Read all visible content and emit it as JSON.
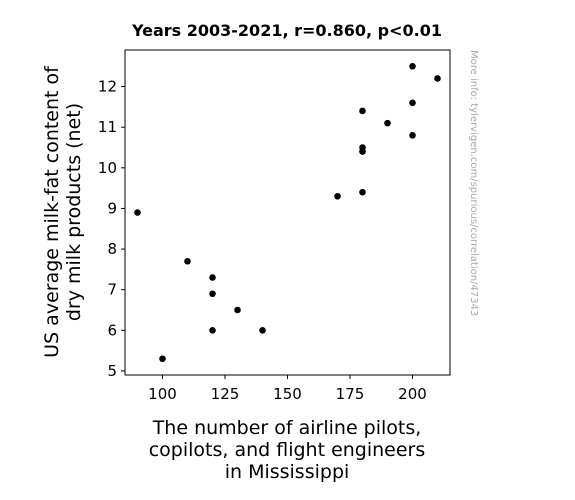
{
  "chart_data": {
    "type": "scatter",
    "title": "Years 2003-2021, r=0.860, p<0.01",
    "xlabel": [
      "The number of airline pilots,",
      "copilots, and flight engineers",
      "in Mississippi"
    ],
    "ylabel": [
      "US average milk-fat content of",
      "dry milk products (net)"
    ],
    "xlim": [
      85,
      215
    ],
    "ylim": [
      4.9,
      12.9
    ],
    "xticks": [
      100,
      125,
      150,
      175,
      200
    ],
    "yticks": [
      5,
      6,
      7,
      8,
      9,
      10,
      11,
      12
    ],
    "point_color": "#000000",
    "points": [
      {
        "x": 90,
        "y": 8.9
      },
      {
        "x": 100,
        "y": 5.3
      },
      {
        "x": 110,
        "y": 7.7
      },
      {
        "x": 120,
        "y": 7.3
      },
      {
        "x": 120,
        "y": 6.9
      },
      {
        "x": 120,
        "y": 6.0
      },
      {
        "x": 130,
        "y": 6.5
      },
      {
        "x": 140,
        "y": 6.0
      },
      {
        "x": 170,
        "y": 9.3
      },
      {
        "x": 180,
        "y": 9.4
      },
      {
        "x": 180,
        "y": 10.4
      },
      {
        "x": 180,
        "y": 10.5
      },
      {
        "x": 180,
        "y": 11.4
      },
      {
        "x": 190,
        "y": 11.1
      },
      {
        "x": 200,
        "y": 10.8
      },
      {
        "x": 200,
        "y": 11.6
      },
      {
        "x": 200,
        "y": 12.5
      },
      {
        "x": 210,
        "y": 12.2
      }
    ]
  },
  "watermark": "More info: tylervigen.com/spurious/correlation/47343"
}
